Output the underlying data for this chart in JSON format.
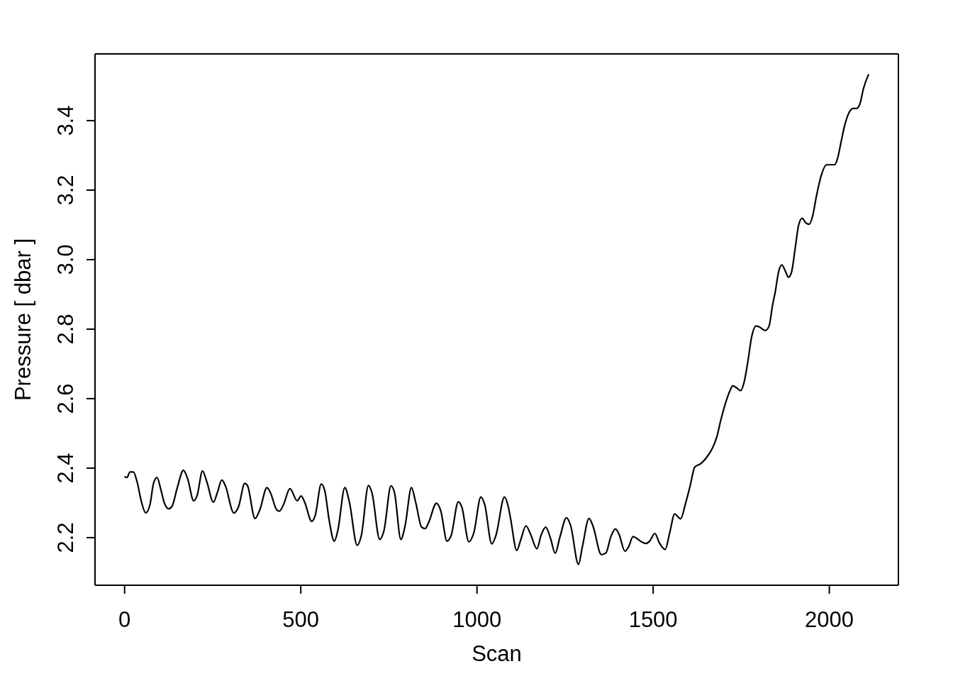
{
  "chart_data": {
    "type": "line",
    "xlabel": "Scan",
    "ylabel": "Pressure [ dbar ]",
    "color": "#000000",
    "marker": "none",
    "line_style": "solid",
    "xlim": [
      -84,
      2196
    ],
    "ylim": [
      2.063,
      3.592
    ],
    "xticks": [
      0,
      500,
      1000,
      1500,
      2000
    ],
    "yticks": [
      2.2,
      2.4,
      2.6,
      2.8,
      {
        "value": 3,
        "label": "3.0"
      },
      3.2,
      3.4
    ],
    "x": [
      1,
      7,
      15,
      25,
      35,
      48,
      60,
      72,
      82,
      92,
      102,
      112,
      125,
      135,
      149,
      167,
      179,
      196,
      206,
      221,
      233,
      252,
      263,
      276,
      286,
      310,
      323,
      341,
      349,
      370,
      384,
      404,
      414,
      431,
      439,
      451,
      469,
      490,
      501,
      511,
      531,
      541,
      558,
      568,
      581,
      595,
      605,
      625,
      638,
      660,
      672,
      692,
      702,
      724,
      736,
      756,
      766,
      784,
      796,
      814,
      826,
      843,
      853,
      863,
      885,
      897,
      915,
      927,
      947,
      957,
      977,
      991,
      1011,
      1022,
      1042,
      1054,
      1078,
      1089,
      1095,
      1113,
      1124,
      1139,
      1152,
      1170,
      1182,
      1195,
      1209,
      1222,
      1235,
      1254,
      1266,
      1288,
      1299,
      1318,
      1329,
      1353,
      1366,
      1380,
      1393,
      1403,
      1420,
      1430,
      1443,
      1457,
      1467,
      1480,
      1490,
      1505,
      1517,
      1534,
      1547,
      1561,
      1578,
      1591,
      1605,
      1618,
      1635,
      1651,
      1668,
      1681,
      1692,
      1705,
      1718,
      1726,
      1738,
      1748,
      1758,
      1769,
      1779,
      1792,
      1802,
      1818,
      1829,
      1839,
      1846,
      1856,
      1865,
      1876,
      1884,
      1893,
      1903,
      1913,
      1923,
      1933,
      1943,
      1953,
      1963,
      1977,
      1992,
      2003,
      2015,
      2023,
      2033,
      2043,
      2057,
      2068,
      2077,
      2087,
      2097,
      2111
    ],
    "values": [
      2.375,
      2.373,
      2.389,
      2.389,
      2.362,
      2.302,
      2.271,
      2.295,
      2.356,
      2.373,
      2.342,
      2.302,
      2.283,
      2.291,
      2.342,
      2.394,
      2.369,
      2.306,
      2.322,
      2.392,
      2.362,
      2.302,
      2.329,
      2.366,
      2.349,
      2.271,
      2.288,
      2.356,
      2.349,
      2.255,
      2.281,
      2.344,
      2.329,
      2.281,
      2.276,
      2.295,
      2.341,
      2.306,
      2.32,
      2.302,
      2.247,
      2.264,
      2.354,
      2.335,
      2.247,
      2.19,
      2.22,
      2.344,
      2.302,
      2.178,
      2.207,
      2.35,
      2.329,
      2.195,
      2.22,
      2.349,
      2.329,
      2.195,
      2.234,
      2.344,
      2.302,
      2.23,
      2.226,
      2.244,
      2.299,
      2.278,
      2.19,
      2.207,
      2.303,
      2.288,
      2.188,
      2.214,
      2.317,
      2.295,
      2.182,
      2.207,
      2.317,
      2.288,
      2.257,
      2.163,
      2.193,
      2.234,
      2.21,
      2.168,
      2.207,
      2.23,
      2.197,
      2.155,
      2.2,
      2.257,
      2.234,
      2.123,
      2.173,
      2.255,
      2.234,
      2.151,
      2.156,
      2.203,
      2.225,
      2.21,
      2.161,
      2.173,
      2.203,
      2.195,
      2.188,
      2.183,
      2.19,
      2.212,
      2.186,
      2.166,
      2.214,
      2.268,
      2.254,
      2.295,
      2.349,
      2.403,
      2.413,
      2.43,
      2.457,
      2.491,
      2.538,
      2.586,
      2.623,
      2.637,
      2.63,
      2.623,
      2.647,
      2.708,
      2.775,
      2.809,
      2.806,
      2.796,
      2.809,
      2.87,
      2.904,
      2.965,
      2.985,
      2.965,
      2.949,
      2.965,
      3.032,
      3.1,
      3.119,
      3.106,
      3.102,
      3.127,
      3.181,
      3.242,
      3.273,
      3.273,
      3.273,
      3.29,
      3.337,
      3.384,
      3.425,
      3.435,
      3.435,
      3.449,
      3.493,
      3.532
    ]
  }
}
